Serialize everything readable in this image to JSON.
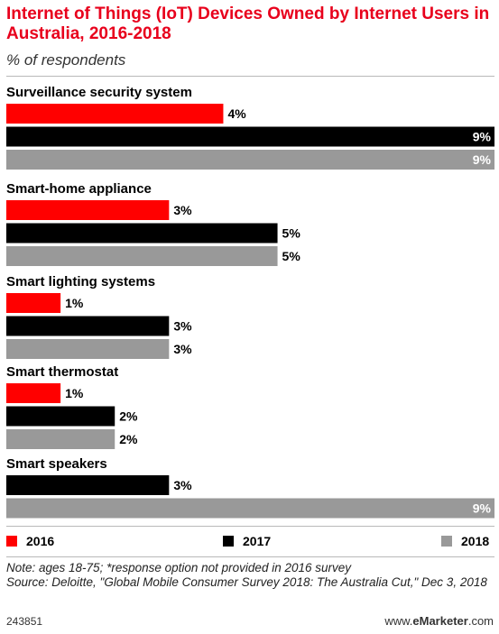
{
  "chart_data": {
    "type": "bar",
    "orientation": "horizontal",
    "title": "Internet of Things (IoT) Devices Owned by Internet Users in Australia, 2016-2018",
    "subtitle": "% of respondents",
    "categories": [
      "Surveillance security system",
      "Smart-home appliance",
      "Smart lighting systems",
      "Smart thermostat",
      "Smart speakers"
    ],
    "series": [
      {
        "name": "2016",
        "color": "#ff0000",
        "values": [
          4,
          3,
          1,
          1,
          null
        ]
      },
      {
        "name": "2017",
        "color": "#000000",
        "values": [
          9,
          5,
          3,
          2,
          3
        ]
      },
      {
        "name": "2018",
        "color": "#999999",
        "values": [
          9,
          5,
          3,
          2,
          9
        ]
      }
    ],
    "value_suffix": "%",
    "xlim": [
      0,
      9
    ],
    "grid": false,
    "legend_position": "bottom"
  },
  "notes": {
    "note": "Note: ages 18-75; *response option not provided in 2016 survey",
    "source": "Source: Deloitte, \"Global Mobile Consumer Survey 2018: The Australia Cut,\" Dec 3, 2018"
  },
  "footer": {
    "chart_id": "243851",
    "brand_prefix": "www.",
    "brand_name": "eMarketer",
    "brand_suffix": ".com"
  }
}
